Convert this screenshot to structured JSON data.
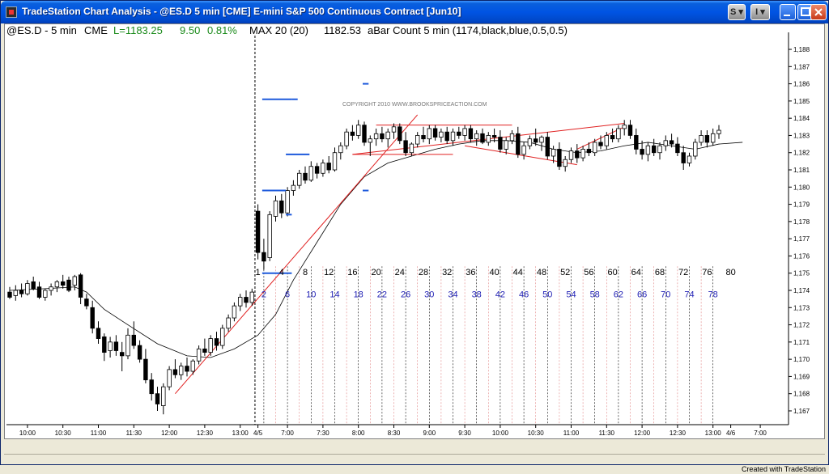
{
  "window": {
    "title": "TradeStation Chart Analysis - @ES.D 5 min [CME] E-mini S&P 500 Continuous Contract [Jun10]",
    "btn_s": "S",
    "btn_i": "I",
    "footer": "Created with TradeStation"
  },
  "header": {
    "symbol": "@ES.D - 5 min",
    "exchange": "CME",
    "last": "L=1183.25",
    "change": "9.50",
    "change_pct": "0.81%",
    "ma_label": "MAX 20 (20)",
    "ma_value": "1182.53",
    "bar_count": "aBar Count 5 min (1174,black,blue,0.5,0.5)"
  },
  "watermark": "COPYRIGHT 2010  WWW.BROOKSPRICEACTION.COM",
  "colors": {
    "up_candle": "#ffffff",
    "down_candle": "#000000",
    "ma_line": "#000000",
    "trendline": "#e02020",
    "count_black": "#000000",
    "count_blue": "#1e1eb4",
    "level_marker": "#1e5adc",
    "day_divider": "#000000"
  },
  "chart_data": {
    "type": "candlestick",
    "title": "",
    "xlabel": "",
    "ylabel": "",
    "ylim": [
      1166.2,
      1188.8
    ],
    "y_ticks": [
      1167,
      1168,
      1169,
      1170,
      1171,
      1172,
      1173,
      1174,
      1175,
      1176,
      1177,
      1178,
      1179,
      1180,
      1181,
      1182,
      1183,
      1184,
      1185,
      1186,
      1187,
      1188
    ],
    "x_tick_labels": [
      {
        "index": 3,
        "label": "10:00"
      },
      {
        "index": 9,
        "label": "10:30"
      },
      {
        "index": 15,
        "label": "11:00"
      },
      {
        "index": 21,
        "label": "11:30"
      },
      {
        "index": 27,
        "label": "12:00"
      },
      {
        "index": 33,
        "label": "12:30"
      },
      {
        "index": 39,
        "label": "13:00"
      },
      {
        "index": 42,
        "label": "4/5"
      },
      {
        "index": 47,
        "label": "7:00"
      },
      {
        "index": 53,
        "label": "7:30"
      },
      {
        "index": 59,
        "label": "8:00"
      },
      {
        "index": 65,
        "label": "8:30"
      },
      {
        "index": 71,
        "label": "9:00"
      },
      {
        "index": 77,
        "label": "9:30"
      },
      {
        "index": 83,
        "label": "10:00"
      },
      {
        "index": 89,
        "label": "10:30"
      },
      {
        "index": 95,
        "label": "11:00"
      },
      {
        "index": 101,
        "label": "11:30"
      },
      {
        "index": 107,
        "label": "12:00"
      },
      {
        "index": 113,
        "label": "12:30"
      },
      {
        "index": 119,
        "label": "13:00"
      },
      {
        "index": 122,
        "label": "4/6"
      },
      {
        "index": 127,
        "label": "7:00"
      }
    ],
    "session_start_index": 42,
    "bars": [
      [
        1173.9,
        1174.2,
        1173.5,
        1173.6
      ],
      [
        1173.7,
        1174.3,
        1173.4,
        1174.0
      ],
      [
        1174.0,
        1174.4,
        1173.6,
        1173.8
      ],
      [
        1173.8,
        1174.6,
        1173.7,
        1174.4
      ],
      [
        1174.5,
        1174.8,
        1174.0,
        1174.1
      ],
      [
        1174.2,
        1174.5,
        1173.5,
        1173.6
      ],
      [
        1173.6,
        1174.1,
        1173.4,
        1174.0
      ],
      [
        1174.0,
        1174.4,
        1173.7,
        1174.2
      ],
      [
        1174.2,
        1174.6,
        1173.9,
        1174.5
      ],
      [
        1174.5,
        1174.9,
        1174.1,
        1174.3
      ],
      [
        1174.6,
        1174.8,
        1173.9,
        1174.0
      ],
      [
        1174.3,
        1174.9,
        1174.0,
        1174.8
      ],
      [
        1174.9,
        1175.0,
        1173.2,
        1173.6
      ],
      [
        1173.5,
        1173.8,
        1172.9,
        1173.1
      ],
      [
        1173.0,
        1173.4,
        1171.5,
        1171.8
      ],
      [
        1171.8,
        1172.2,
        1170.9,
        1171.2
      ],
      [
        1171.3,
        1171.5,
        1169.9,
        1170.4
      ],
      [
        1170.5,
        1171.3,
        1170.1,
        1171.0
      ],
      [
        1171.0,
        1171.4,
        1170.2,
        1170.5
      ],
      [
        1170.4,
        1171.0,
        1169.3,
        1170.2
      ],
      [
        1170.2,
        1171.8,
        1170.0,
        1171.4
      ],
      [
        1171.4,
        1172.2,
        1170.6,
        1170.8
      ],
      [
        1170.8,
        1171.1,
        1169.8,
        1170.0
      ],
      [
        1170.0,
        1170.6,
        1168.6,
        1168.8
      ],
      [
        1168.8,
        1169.2,
        1167.6,
        1168.0
      ],
      [
        1168.0,
        1168.4,
        1167.0,
        1167.4
      ],
      [
        1167.3,
        1168.6,
        1166.8,
        1168.4
      ],
      [
        1168.4,
        1169.6,
        1168.2,
        1169.4
      ],
      [
        1169.4,
        1170.0,
        1168.9,
        1169.1
      ],
      [
        1169.1,
        1169.8,
        1168.8,
        1169.6
      ],
      [
        1169.6,
        1170.1,
        1169.0,
        1169.3
      ],
      [
        1169.3,
        1170.0,
        1169.1,
        1169.9
      ],
      [
        1169.9,
        1170.8,
        1169.7,
        1170.6
      ],
      [
        1170.6,
        1171.2,
        1170.2,
        1170.4
      ],
      [
        1170.4,
        1171.4,
        1170.2,
        1171.2
      ],
      [
        1171.2,
        1171.6,
        1170.5,
        1170.8
      ],
      [
        1170.8,
        1172.0,
        1170.6,
        1171.8
      ],
      [
        1171.8,
        1172.6,
        1171.6,
        1172.4
      ],
      [
        1172.4,
        1173.3,
        1172.2,
        1173.1
      ],
      [
        1173.1,
        1173.8,
        1172.8,
        1173.6
      ],
      [
        1173.6,
        1174.0,
        1173.0,
        1173.3
      ],
      [
        1173.3,
        1174.1,
        1173.1,
        1173.9
      ],
      [
        1178.6,
        1179.0,
        1175.8,
        1176.2
      ],
      [
        1176.2,
        1177.0,
        1175.2,
        1175.7
      ],
      [
        1175.9,
        1178.6,
        1175.7,
        1178.4
      ],
      [
        1178.3,
        1179.5,
        1178.0,
        1179.2
      ],
      [
        1179.2,
        1179.6,
        1178.2,
        1178.5
      ],
      [
        1178.5,
        1180.0,
        1178.3,
        1179.8
      ],
      [
        1179.8,
        1180.4,
        1179.5,
        1180.1
      ],
      [
        1180.1,
        1181.0,
        1179.9,
        1180.8
      ],
      [
        1180.8,
        1181.2,
        1180.2,
        1180.4
      ],
      [
        1180.4,
        1181.5,
        1180.3,
        1181.2
      ],
      [
        1181.2,
        1181.4,
        1180.5,
        1180.8
      ],
      [
        1180.8,
        1181.6,
        1180.6,
        1181.4
      ],
      [
        1181.4,
        1181.8,
        1180.8,
        1181.0
      ],
      [
        1181.0,
        1182.3,
        1180.9,
        1182.0
      ],
      [
        1182.0,
        1182.6,
        1181.6,
        1182.4
      ],
      [
        1182.4,
        1183.4,
        1182.2,
        1183.2
      ],
      [
        1183.2,
        1183.6,
        1182.7,
        1183.0
      ],
      [
        1183.0,
        1183.9,
        1182.8,
        1183.6
      ],
      [
        1183.6,
        1183.8,
        1182.4,
        1182.6
      ],
      [
        1182.6,
        1183.0,
        1181.8,
        1182.8
      ],
      [
        1182.8,
        1183.4,
        1182.4,
        1183.1
      ],
      [
        1183.1,
        1183.5,
        1182.6,
        1182.8
      ],
      [
        1182.8,
        1183.4,
        1182.3,
        1183.2
      ],
      [
        1183.2,
        1183.7,
        1182.8,
        1183.5
      ],
      [
        1183.5,
        1183.7,
        1182.5,
        1182.7
      ],
      [
        1182.7,
        1183.2,
        1181.8,
        1182.0
      ],
      [
        1182.0,
        1182.6,
        1181.8,
        1182.5
      ],
      [
        1182.5,
        1183.2,
        1182.3,
        1183.0
      ],
      [
        1183.0,
        1183.5,
        1182.6,
        1182.8
      ],
      [
        1182.8,
        1183.6,
        1182.5,
        1183.4
      ],
      [
        1183.4,
        1183.6,
        1182.7,
        1182.9
      ],
      [
        1182.9,
        1183.4,
        1182.6,
        1183.2
      ],
      [
        1183.2,
        1183.5,
        1182.5,
        1182.7
      ],
      [
        1182.7,
        1183.4,
        1182.4,
        1183.2
      ],
      [
        1183.2,
        1183.5,
        1182.8,
        1183.0
      ],
      [
        1183.0,
        1183.6,
        1182.7,
        1183.4
      ],
      [
        1183.4,
        1183.6,
        1182.6,
        1182.8
      ],
      [
        1182.8,
        1183.3,
        1182.4,
        1183.1
      ],
      [
        1183.1,
        1183.4,
        1182.5,
        1182.6
      ],
      [
        1182.6,
        1183.2,
        1182.4,
        1183.0
      ],
      [
        1183.0,
        1183.4,
        1182.6,
        1182.9
      ],
      [
        1182.9,
        1183.3,
        1182.0,
        1182.2
      ],
      [
        1182.2,
        1182.9,
        1181.9,
        1182.7
      ],
      [
        1182.7,
        1183.3,
        1182.5,
        1183.1
      ],
      [
        1183.1,
        1183.5,
        1181.7,
        1181.9
      ],
      [
        1181.9,
        1182.6,
        1181.6,
        1182.4
      ],
      [
        1182.4,
        1183.0,
        1182.2,
        1182.8
      ],
      [
        1182.8,
        1183.4,
        1182.4,
        1182.6
      ],
      [
        1182.6,
        1183.0,
        1182.1,
        1182.9
      ],
      [
        1182.9,
        1183.2,
        1181.6,
        1181.8
      ],
      [
        1181.8,
        1182.4,
        1181.4,
        1182.2
      ],
      [
        1182.2,
        1182.6,
        1181.0,
        1181.2
      ],
      [
        1181.2,
        1181.8,
        1180.9,
        1181.6
      ],
      [
        1181.6,
        1182.3,
        1181.4,
        1182.1
      ],
      [
        1182.1,
        1182.5,
        1181.4,
        1181.7
      ],
      [
        1181.7,
        1182.4,
        1181.5,
        1182.2
      ],
      [
        1182.2,
        1182.6,
        1181.8,
        1182.0
      ],
      [
        1182.0,
        1182.8,
        1181.8,
        1182.6
      ],
      [
        1182.6,
        1183.0,
        1182.2,
        1182.4
      ],
      [
        1182.4,
        1183.2,
        1182.2,
        1183.0
      ],
      [
        1183.0,
        1183.4,
        1182.6,
        1182.8
      ],
      [
        1182.8,
        1183.6,
        1182.6,
        1183.4
      ],
      [
        1183.4,
        1183.9,
        1183.0,
        1183.6
      ],
      [
        1183.6,
        1183.9,
        1182.8,
        1183.0
      ],
      [
        1183.0,
        1183.4,
        1181.9,
        1182.2
      ],
      [
        1182.2,
        1182.7,
        1181.6,
        1181.9
      ],
      [
        1181.9,
        1182.6,
        1181.5,
        1182.4
      ],
      [
        1182.4,
        1182.8,
        1181.8,
        1182.0
      ],
      [
        1182.0,
        1182.6,
        1181.6,
        1182.4
      ],
      [
        1182.4,
        1183.0,
        1182.1,
        1182.7
      ],
      [
        1182.7,
        1183.1,
        1182.3,
        1182.5
      ],
      [
        1182.5,
        1182.9,
        1181.8,
        1182.0
      ],
      [
        1182.0,
        1182.4,
        1181.0,
        1181.4
      ],
      [
        1181.4,
        1182.0,
        1181.2,
        1181.8
      ],
      [
        1181.8,
        1182.8,
        1181.6,
        1182.6
      ],
      [
        1182.6,
        1183.3,
        1182.4,
        1183.0
      ],
      [
        1183.0,
        1183.3,
        1182.3,
        1182.6
      ],
      [
        1182.6,
        1183.4,
        1182.4,
        1183.1
      ],
      [
        1183.1,
        1183.6,
        1182.8,
        1183.3
      ]
    ],
    "moving_average": [
      [
        0,
        1174.0
      ],
      [
        6,
        1174.1
      ],
      [
        11,
        1174.2
      ],
      [
        13,
        1173.9
      ],
      [
        16,
        1172.9
      ],
      [
        20,
        1172.0
      ],
      [
        25,
        1170.9
      ],
      [
        30,
        1170.2
      ],
      [
        34,
        1170.1
      ],
      [
        38,
        1170.6
      ],
      [
        41,
        1171.2
      ],
      [
        42,
        1171.4
      ],
      [
        45,
        1172.6
      ],
      [
        48,
        1174.6
      ],
      [
        52,
        1176.8
      ],
      [
        56,
        1179.0
      ],
      [
        60,
        1180.6
      ],
      [
        64,
        1181.4
      ],
      [
        68,
        1181.8
      ],
      [
        72,
        1182.2
      ],
      [
        76,
        1182.5
      ],
      [
        80,
        1182.7
      ],
      [
        84,
        1182.7
      ],
      [
        88,
        1182.6
      ],
      [
        92,
        1182.2
      ],
      [
        96,
        1182.0
      ],
      [
        100,
        1182.1
      ],
      [
        104,
        1182.4
      ],
      [
        108,
        1182.6
      ],
      [
        112,
        1182.4
      ],
      [
        116,
        1182.2
      ],
      [
        120,
        1182.5
      ],
      [
        124,
        1182.6
      ]
    ],
    "trendlines": [
      {
        "from": [
          28,
          1168.0
        ],
        "to": [
          69,
          1184.2
        ]
      },
      {
        "from": [
          58,
          1181.9
        ],
        "to": [
          104,
          1183.7
        ]
      },
      {
        "from": [
          58,
          1181.9
        ],
        "to": [
          75,
          1181.9
        ]
      },
      {
        "from": [
          62,
          1183.6
        ],
        "to": [
          85,
          1183.6
        ]
      },
      {
        "from": [
          77,
          1182.4
        ],
        "to": [
          96,
          1181.3
        ]
      },
      {
        "from": [
          96,
          1182.2
        ],
        "to": [
          104,
          1183.5
        ]
      }
    ],
    "level_markers": [
      {
        "index": 43,
        "price": 1175.0,
        "width": 5
      },
      {
        "index": 43,
        "price": 1179.8,
        "width": 4
      },
      {
        "index": 43,
        "price": 1185.1,
        "width": 5
      },
      {
        "index": 48,
        "price": 1185.1,
        "width": 1
      },
      {
        "index": 47,
        "price": 1181.9,
        "width": 4
      },
      {
        "index": 47,
        "price": 1178.4,
        "width": 1
      },
      {
        "index": 60,
        "price": 1186.0,
        "width": 1
      },
      {
        "index": 60,
        "price": 1179.8,
        "width": 1
      }
    ],
    "bar_count_labels_top": [
      "1",
      "4",
      "8",
      "12",
      "16",
      "20",
      "24",
      "28",
      "32",
      "36",
      "40",
      "44",
      "48",
      "52",
      "56",
      "60",
      "64",
      "68",
      "72",
      "76",
      "80"
    ],
    "bar_count_labels_bottom": [
      "2",
      "6",
      "10",
      "14",
      "18",
      "22",
      "26",
      "30",
      "34",
      "38",
      "42",
      "46",
      "50",
      "54",
      "58",
      "62",
      "66",
      "70",
      "74",
      "78"
    ]
  }
}
